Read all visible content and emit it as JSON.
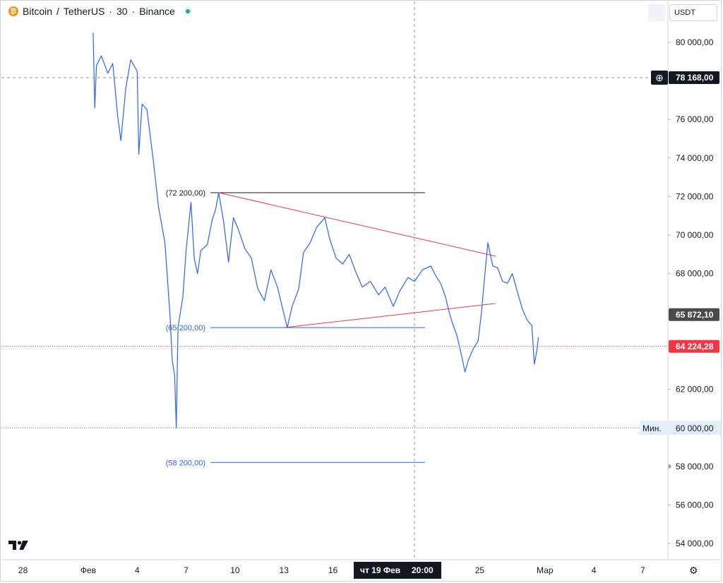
{
  "header": {
    "symbol": "Bitcoin",
    "separator": "/",
    "quote": "TetherUS",
    "interval": "30",
    "exchange": "Binance",
    "dot": "·",
    "icon": "bitcoin-icon",
    "status_color": "#22ab94"
  },
  "currency_button": {
    "label": "USDT"
  },
  "settings": {
    "icon": "gear-icon"
  },
  "chart_data": {
    "type": "line",
    "title": "",
    "xlabel": "",
    "ylabel": "",
    "ylim": [
      53300,
      81100
    ],
    "price_color": "#2962ff",
    "y_ticks": [
      {
        "v": 80000,
        "label": "80 000,00"
      },
      {
        "v": 76000,
        "label": "76 000,00"
      },
      {
        "v": 74000,
        "label": "74 000,00"
      },
      {
        "v": 72000,
        "label": "72 000,00"
      },
      {
        "v": 70000,
        "label": "70 000,00"
      },
      {
        "v": 68000,
        "label": "68 000,00"
      },
      {
        "v": 62000,
        "label": "62 000,00"
      },
      {
        "v": 58000,
        "label": "58 000,00"
      },
      {
        "v": 56000,
        "label": "56 000,00"
      },
      {
        "v": 54000,
        "label": "54 000,00"
      }
    ],
    "x_ticks": [
      {
        "t": -4,
        "label": "28"
      },
      {
        "t": 0,
        "label": "Фев"
      },
      {
        "t": 3,
        "label": "4"
      },
      {
        "t": 6,
        "label": "7"
      },
      {
        "t": 9,
        "label": "10"
      },
      {
        "t": 12,
        "label": "13"
      },
      {
        "t": 15,
        "label": "16"
      },
      {
        "t": 24,
        "label": "25"
      },
      {
        "t": 28,
        "label": "Мар"
      },
      {
        "t": 31,
        "label": "4"
      },
      {
        "t": 34,
        "label": "7"
      }
    ],
    "series": [
      {
        "points": [
          [
            0.3,
            80500
          ],
          [
            0.4,
            76600
          ],
          [
            0.5,
            78800
          ],
          [
            0.8,
            79300
          ],
          [
            1.2,
            78400
          ],
          [
            1.5,
            78900
          ],
          [
            1.8,
            76200
          ],
          [
            2.0,
            74900
          ],
          [
            2.3,
            77600
          ],
          [
            2.6,
            79100
          ],
          [
            3.0,
            78500
          ],
          [
            3.1,
            74200
          ],
          [
            3.3,
            76800
          ],
          [
            3.6,
            76500
          ],
          [
            4.0,
            73800
          ],
          [
            4.3,
            71500
          ],
          [
            4.7,
            69600
          ],
          [
            5.0,
            66000
          ],
          [
            5.15,
            63500
          ],
          [
            5.3,
            62700
          ],
          [
            5.4,
            60000
          ],
          [
            5.5,
            65200
          ],
          [
            5.8,
            66800
          ],
          [
            6.0,
            69200
          ],
          [
            6.3,
            71700
          ],
          [
            6.5,
            68800
          ],
          [
            6.7,
            68000
          ],
          [
            6.9,
            69200
          ],
          [
            7.3,
            69500
          ],
          [
            7.6,
            70800
          ],
          [
            7.8,
            71300
          ],
          [
            8.0,
            72200
          ],
          [
            8.3,
            70700
          ],
          [
            8.6,
            68600
          ],
          [
            8.9,
            70900
          ],
          [
            9.2,
            70300
          ],
          [
            9.6,
            69300
          ],
          [
            10.0,
            68800
          ],
          [
            10.4,
            67200
          ],
          [
            10.8,
            66600
          ],
          [
            11.2,
            68200
          ],
          [
            11.6,
            67300
          ],
          [
            12.0,
            65900
          ],
          [
            12.2,
            65200
          ],
          [
            12.5,
            66300
          ],
          [
            12.9,
            67200
          ],
          [
            13.2,
            69100
          ],
          [
            13.6,
            69600
          ],
          [
            14.0,
            70400
          ],
          [
            14.5,
            70900
          ],
          [
            14.8,
            69800
          ],
          [
            15.2,
            68800
          ],
          [
            15.6,
            68500
          ],
          [
            16.0,
            69000
          ],
          [
            16.4,
            68100
          ],
          [
            16.8,
            67300
          ],
          [
            17.3,
            67600
          ],
          [
            17.8,
            66900
          ],
          [
            18.2,
            67300
          ],
          [
            18.7,
            66300
          ],
          [
            19.1,
            67100
          ],
          [
            19.6,
            67800
          ],
          [
            20.0,
            67600
          ],
          [
            20.5,
            68200
          ],
          [
            21.0,
            68400
          ],
          [
            21.3,
            67900
          ],
          [
            21.6,
            67500
          ],
          [
            21.9,
            66800
          ],
          [
            22.1,
            66100
          ],
          [
            22.3,
            65500
          ],
          [
            22.6,
            64800
          ],
          [
            22.9,
            63700
          ],
          [
            23.1,
            62900
          ],
          [
            23.3,
            63500
          ],
          [
            23.6,
            64100
          ],
          [
            23.9,
            64500
          ],
          [
            24.1,
            65900
          ],
          [
            24.3,
            67800
          ],
          [
            24.5,
            69600
          ],
          [
            24.8,
            68400
          ],
          [
            25.1,
            68300
          ],
          [
            25.4,
            67600
          ],
          [
            25.7,
            67500
          ],
          [
            26.0,
            68000
          ],
          [
            26.3,
            67100
          ],
          [
            26.6,
            66200
          ],
          [
            26.9,
            65600
          ],
          [
            27.2,
            65300
          ],
          [
            27.35,
            63300
          ],
          [
            27.5,
            64000
          ],
          [
            27.6,
            64700
          ]
        ]
      }
    ],
    "lines": [
      {
        "kind": "level",
        "t1": 8.0,
        "t2": 21.5,
        "v": 72200,
        "color": "#131722",
        "label": "(72 200,00)"
      },
      {
        "kind": "level",
        "t1": 8.0,
        "t2": 21.5,
        "v": 65200,
        "color": "#2962ff",
        "label": "(65 200,00)"
      },
      {
        "kind": "level",
        "t1": 8.0,
        "t2": 21.5,
        "v": 58200,
        "color": "#2962ff",
        "label": "(58 200,00)"
      },
      {
        "kind": "trend",
        "t1": 8.0,
        "v1": 72200,
        "t2": 25.0,
        "v2": 68900,
        "color": "#f23645"
      },
      {
        "kind": "trend",
        "t1": 12.0,
        "v1": 65200,
        "t2": 24.95,
        "v2": 66450,
        "color": "#f23645"
      }
    ],
    "markers": {
      "dashed_price": {
        "v": 78168,
        "label": "78 168,00",
        "bg": "#131722"
      },
      "last_price": {
        "v": 64224.28,
        "label": "64 224,28",
        "bg": "#f23645"
      },
      "gray_price": {
        "v": 65872.1,
        "label": "65 872,10",
        "bg": "#4a4a4a"
      },
      "min_price": {
        "v": 60000,
        "label": "60 000,00",
        "bg": "#e3effd",
        "tag": "Мин."
      },
      "small_marker": {
        "v": 58000
      }
    },
    "crosshair": {
      "t": 20.0,
      "label_day": "чт 19 Фев",
      "label_time": "20:00"
    }
  }
}
